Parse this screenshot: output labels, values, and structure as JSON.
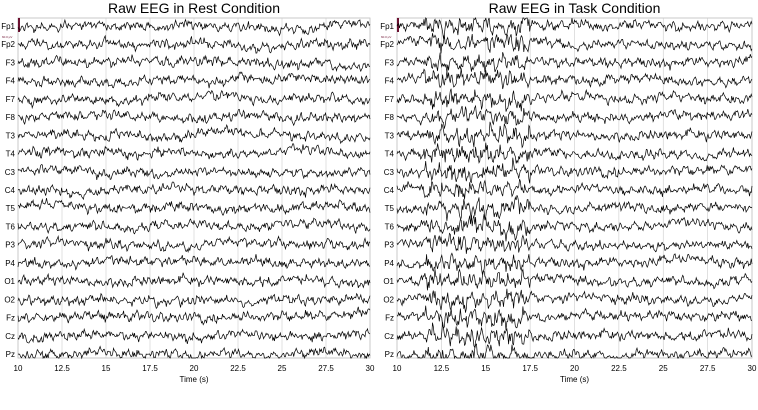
{
  "chart_data": [
    {
      "type": "line",
      "title": "Raw EEG in Rest Condition",
      "xlabel": "Time (s)",
      "xlim": [
        10,
        30
      ],
      "xticks": [
        "10",
        "12.5",
        "15",
        "17.5",
        "20",
        "22.5",
        "25",
        "27.5",
        "30"
      ],
      "channels": [
        "Fp1",
        "Fp2",
        "F3",
        "F4",
        "F7",
        "F8",
        "T3",
        "T4",
        "C3",
        "C4",
        "T5",
        "T6",
        "P3",
        "P4",
        "O1",
        "O2",
        "Fz",
        "Cz",
        "Pz"
      ],
      "scale_label": "60.0 µV",
      "grid": true,
      "trace_color": "#000000"
    },
    {
      "type": "line",
      "title": "Raw EEG in Task Condition",
      "xlabel": "Time (s)",
      "xlim": [
        10,
        30
      ],
      "xticks": [
        "10",
        "12.5",
        "15",
        "17.5",
        "20",
        "22.5",
        "25",
        "27.5",
        "30"
      ],
      "channels": [
        "Fp1",
        "Fp2",
        "F3",
        "F4",
        "F7",
        "F8",
        "T3",
        "T4",
        "C3",
        "C4",
        "T5",
        "T6",
        "P3",
        "P4",
        "O1",
        "O2",
        "Fz",
        "Cz",
        "Pz"
      ],
      "scale_label": "60.0 µV",
      "grid": true,
      "trace_color": "#000000"
    }
  ]
}
